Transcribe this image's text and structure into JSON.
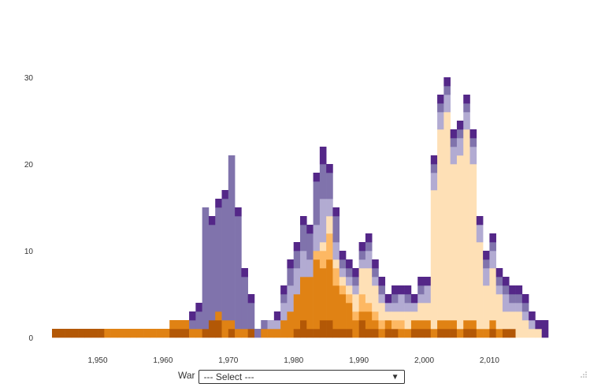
{
  "chart_data": {
    "type": "bar",
    "stacked": true,
    "title": "",
    "xlabel": "",
    "ylabel": "",
    "xlim": [
      1943,
      2019
    ],
    "ylim": [
      0,
      38
    ],
    "x_ticks": [
      1950,
      1960,
      1970,
      1980,
      1990,
      2000,
      2010
    ],
    "x_tick_labels": [
      "1,950",
      "1,960",
      "1,970",
      "1,980",
      "1,990",
      "2,000",
      "2,010"
    ],
    "y_ticks": [
      0,
      10,
      20,
      30
    ],
    "y_tick_labels": [
      "0",
      "10",
      "20",
      "30"
    ],
    "grid": false,
    "legend": "none",
    "bin_width": 1,
    "x": [
      1943,
      1944,
      1945,
      1946,
      1947,
      1948,
      1949,
      1950,
      1951,
      1952,
      1953,
      1954,
      1955,
      1956,
      1957,
      1958,
      1959,
      1960,
      1961,
      1962,
      1963,
      1964,
      1965,
      1966,
      1967,
      1968,
      1969,
      1970,
      1971,
      1972,
      1973,
      1974,
      1975,
      1976,
      1977,
      1978,
      1979,
      1980,
      1981,
      1982,
      1983,
      1984,
      1985,
      1986,
      1987,
      1988,
      1989,
      1990,
      1991,
      1992,
      1993,
      1994,
      1995,
      1996,
      1997,
      1998,
      1999,
      2000,
      2001,
      2002,
      2003,
      2004,
      2005,
      2006,
      2007,
      2008,
      2009,
      2010,
      2011,
      2012,
      2013,
      2014,
      2015,
      2016,
      2017,
      2018
    ],
    "series": [
      {
        "color": "#b35806",
        "values": [
          1,
          1,
          1,
          1,
          1,
          1,
          1,
          1,
          0,
          0,
          0,
          0,
          0,
          0,
          0,
          0,
          0,
          0,
          1,
          1,
          1,
          0,
          0,
          1,
          2,
          2,
          0,
          1,
          0,
          0,
          1,
          0,
          0,
          0,
          0,
          0,
          0,
          1,
          2,
          1,
          1,
          2,
          2,
          1,
          1,
          1,
          0,
          2,
          1,
          1,
          0,
          1,
          1,
          0,
          0,
          1,
          1,
          1,
          0,
          1,
          1,
          1,
          0,
          1,
          1,
          0,
          0,
          1,
          0,
          1,
          1,
          0,
          0,
          0,
          0,
          0
        ]
      },
      {
        "color": "#e08214",
        "values": [
          0,
          0,
          0,
          0,
          0,
          0,
          0,
          0,
          1,
          1,
          1,
          1,
          1,
          1,
          1,
          1,
          1,
          1,
          1,
          1,
          1,
          1,
          1,
          0,
          0,
          1,
          2,
          1,
          1,
          1,
          0,
          0,
          1,
          1,
          1,
          2,
          3,
          4,
          5,
          6,
          8,
          6,
          7,
          5,
          4,
          3,
          2,
          1,
          2,
          1,
          1,
          1,
          0,
          1,
          1,
          1,
          1,
          1,
          1,
          1,
          1,
          1,
          1,
          1,
          1,
          1,
          1,
          1,
          1,
          0,
          0,
          0,
          0,
          0,
          0,
          0
        ]
      },
      {
        "color": "#fdb863",
        "values": [
          0,
          0,
          0,
          0,
          0,
          0,
          0,
          0,
          0,
          0,
          0,
          0,
          0,
          0,
          0,
          0,
          0,
          0,
          0,
          0,
          0,
          0,
          0,
          0,
          0,
          0,
          0,
          0,
          0,
          0,
          0,
          0,
          0,
          0,
          0,
          0,
          0,
          0,
          0,
          0,
          1,
          2,
          3,
          2,
          1,
          1,
          1,
          2,
          1,
          1,
          1,
          0,
          1,
          1,
          0,
          0,
          0,
          0,
          0,
          0,
          0,
          0,
          0,
          0,
          0,
          0,
          0,
          0,
          0,
          0,
          0,
          0,
          0,
          0,
          0,
          0
        ]
      },
      {
        "color": "#fee0b6",
        "values": [
          0,
          0,
          0,
          0,
          0,
          0,
          0,
          0,
          0,
          0,
          0,
          0,
          0,
          0,
          0,
          0,
          0,
          0,
          0,
          0,
          0,
          0,
          0,
          0,
          0,
          0,
          0,
          0,
          0,
          0,
          0,
          0,
          0,
          0,
          0,
          0,
          0,
          0,
          0,
          0,
          0,
          1,
          2,
          1,
          1,
          1,
          2,
          3,
          4,
          3,
          2,
          1,
          1,
          1,
          2,
          1,
          2,
          2,
          16,
          22,
          24,
          18,
          20,
          22,
          18,
          10,
          5,
          6,
          4,
          2,
          2,
          3,
          2,
          1,
          1,
          0
        ]
      },
      {
        "color": "#b2abd2",
        "values": [
          0,
          0,
          0,
          0,
          0,
          0,
          0,
          0,
          0,
          0,
          0,
          0,
          0,
          0,
          0,
          0,
          0,
          0,
          0,
          0,
          0,
          0,
          0,
          0,
          0,
          0,
          0,
          0,
          0,
          0,
          0,
          0,
          0,
          1,
          1,
          2,
          3,
          3,
          3,
          2,
          3,
          5,
          2,
          2,
          1,
          1,
          1,
          1,
          2,
          1,
          1,
          1,
          1,
          2,
          1,
          1,
          1,
          2,
          2,
          2,
          2,
          2,
          2,
          2,
          2,
          2,
          2,
          2,
          1,
          2,
          1,
          1,
          1,
          1,
          0,
          0
        ]
      },
      {
        "color": "#8073ac",
        "values": [
          0,
          0,
          0,
          0,
          0,
          0,
          0,
          0,
          0,
          0,
          0,
          0,
          0,
          0,
          0,
          0,
          0,
          0,
          0,
          0,
          0,
          1,
          2,
          14,
          11,
          12,
          14,
          19,
          13,
          6,
          3,
          1,
          1,
          0,
          0,
          1,
          2,
          2,
          3,
          3,
          5,
          4,
          3,
          3,
          1,
          1,
          1,
          1,
          1,
          1,
          1,
          0,
          1,
          0,
          1,
          0,
          1,
          0,
          1,
          1,
          1,
          1,
          1,
          1,
          1,
          0,
          1,
          1,
          1,
          1,
          1,
          1,
          1,
          0,
          0,
          0
        ]
      },
      {
        "color": "#542788",
        "values": [
          0,
          0,
          0,
          0,
          0,
          0,
          0,
          0,
          0,
          0,
          0,
          0,
          0,
          0,
          0,
          0,
          0,
          0,
          0,
          0,
          0,
          1,
          1,
          0,
          1,
          1,
          1,
          0,
          1,
          1,
          1,
          0,
          0,
          0,
          1,
          1,
          1,
          1,
          1,
          1,
          1,
          2,
          1,
          1,
          1,
          1,
          1,
          1,
          1,
          1,
          1,
          1,
          1,
          1,
          1,
          1,
          1,
          1,
          1,
          1,
          1,
          1,
          1,
          1,
          1,
          1,
          1,
          1,
          1,
          1,
          1,
          1,
          1,
          1,
          1,
          2
        ]
      }
    ]
  },
  "controls": {
    "filter_label": "War",
    "filter_value": "--- Select ---",
    "dropdown_arrow": "▼"
  }
}
